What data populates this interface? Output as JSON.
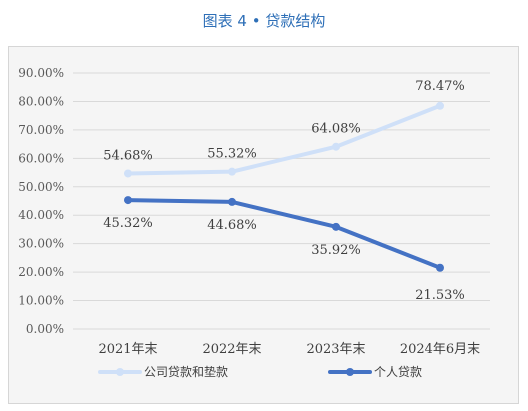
{
  "caption": "图表 4 • 贷款结构",
  "chart_data": {
    "type": "line",
    "categories": [
      "2021年末",
      "2022年末",
      "2023年末",
      "2024年6月末"
    ],
    "series": [
      {
        "name": "公司贷款和垫款",
        "values": [
          54.68,
          55.32,
          64.08,
          78.47
        ],
        "color": "#cfe0f8",
        "labels": [
          "54.68%",
          "55.32%",
          "64.08%",
          "78.47%"
        ]
      },
      {
        "name": "个人贷款",
        "values": [
          45.32,
          44.68,
          35.92,
          21.53
        ],
        "color": "#4472c4",
        "labels": [
          "45.32%",
          "44.68%",
          "35.92%",
          "21.53%"
        ]
      }
    ],
    "ylim": [
      0,
      90
    ],
    "yticks": [
      "0.00%",
      "10.00%",
      "20.00%",
      "30.00%",
      "40.00%",
      "50.00%",
      "60.00%",
      "70.00%",
      "80.00%",
      "90.00%"
    ],
    "grid": true,
    "legend_position": "bottom-left"
  }
}
